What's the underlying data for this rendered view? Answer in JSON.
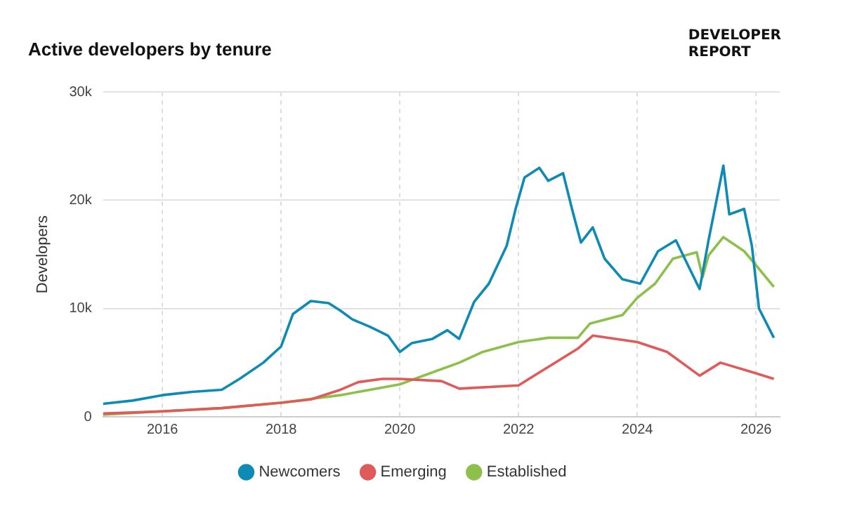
{
  "chart_data": {
    "type": "line",
    "title": "Active developers by tenure",
    "ylabel": "Developers",
    "annotations": [
      "DEVELOPER\nREPORT"
    ],
    "xlim": [
      2015,
      2026.4
    ],
    "xticks": [
      2016,
      2018,
      2020,
      2022,
      2024,
      2026
    ],
    "ylim": [
      0,
      30000
    ],
    "yticks": [
      {
        "value": 0,
        "label": "0"
      },
      {
        "value": 10000,
        "label": "10k"
      },
      {
        "value": 20000,
        "label": "20k"
      },
      {
        "value": 30000,
        "label": "30k"
      }
    ],
    "grid": true,
    "legend": "bottom",
    "marker": "none",
    "line_style": "solid",
    "series": [
      {
        "name": "Newcomers",
        "color": "#0e8bb5",
        "x": [
          2015,
          2015.5,
          2016,
          2016.5,
          2017,
          2017.3,
          2017.7,
          2018,
          2018.2,
          2018.5,
          2018.8,
          2019,
          2019.2,
          2019.5,
          2019.8,
          2020,
          2020.2,
          2020.55,
          2020.8,
          2021,
          2021.25,
          2021.5,
          2021.8,
          2021.95,
          2022.1,
          2022.35,
          2022.5,
          2022.75,
          2022.9,
          2023.05,
          2023.25,
          2023.45,
          2023.75,
          2024.05,
          2024.35,
          2024.65,
          2024.8,
          2025.05,
          2025.2,
          2025.45,
          2025.55,
          2025.8,
          2025.93,
          2026.05,
          2026.3
        ],
        "values": [
          1200,
          1500,
          2000,
          2300,
          2500,
          3500,
          5000,
          6500,
          9500,
          10700,
          10500,
          9800,
          9000,
          8300,
          7500,
          6000,
          6800,
          7200,
          8000,
          7200,
          10600,
          12300,
          15800,
          19200,
          22100,
          23000,
          21800,
          22500,
          19200,
          16100,
          17500,
          14600,
          12700,
          12300,
          15300,
          16300,
          14600,
          11800,
          16300,
          23200,
          18700,
          19200,
          15800,
          10000,
          7300
        ]
      },
      {
        "name": "Emerging",
        "color": "#e05a5a",
        "x": [
          2015,
          2016,
          2017,
          2018,
          2018.5,
          2019,
          2019.3,
          2019.7,
          2020,
          2020.7,
          2021,
          2022,
          2022.5,
          2023,
          2023.25,
          2024,
          2024.5,
          2025.05,
          2025.4,
          2025.95,
          2026.3
        ],
        "values": [
          300,
          500,
          800,
          1300,
          1600,
          2500,
          3200,
          3500,
          3500,
          3300,
          2600,
          2900,
          4600,
          6300,
          7500,
          6900,
          6000,
          3800,
          5000,
          4100,
          3500
        ]
      },
      {
        "name": "Established",
        "color": "#8cc04a",
        "x": [
          2015,
          2016,
          2017,
          2018,
          2019,
          2019.5,
          2020,
          2020.5,
          2021,
          2021.4,
          2022,
          2022.5,
          2023,
          2023.2,
          2023.75,
          2024,
          2024.3,
          2024.6,
          2025,
          2025.1,
          2025.2,
          2025.45,
          2025.8,
          2026,
          2026.3
        ],
        "values": [
          200,
          500,
          800,
          1300,
          2000,
          2500,
          3000,
          4000,
          5000,
          6000,
          6900,
          7300,
          7300,
          8600,
          9400,
          11000,
          12300,
          14600,
          15200,
          12900,
          14900,
          16600,
          15300,
          14000,
          12000
        ]
      }
    ]
  }
}
